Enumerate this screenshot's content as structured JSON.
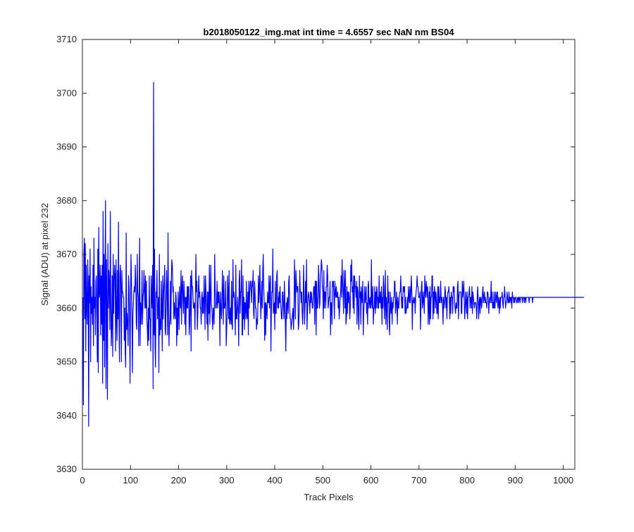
{
  "chart_data": {
    "type": "line",
    "title": "b2018050122_img.mat int time = 4.6557 sec  NaN nm BS04",
    "xlabel": "Track Pixels",
    "ylabel": "Signal (ADU) at pixel 232",
    "xlim": [
      0,
      1024
    ],
    "ylim": [
      3630,
      3710
    ],
    "xticks": [
      0,
      100,
      200,
      300,
      400,
      500,
      600,
      700,
      800,
      900,
      1000
    ],
    "yticks": [
      3630,
      3640,
      3650,
      3660,
      3670,
      3680,
      3690,
      3700,
      3710
    ],
    "grid": false,
    "legend": "none",
    "series": [
      {
        "color": "#0000ff",
        "x_start": 1,
        "x_step": 1,
        "values": [
          3662,
          3642,
          3670,
          3673,
          3658,
          3672,
          3652,
          3668,
          3660,
          3657,
          3669,
          3665,
          3638,
          3666,
          3661,
          3671,
          3650,
          3664,
          3659,
          3662,
          3657,
          3668,
          3653,
          3673,
          3660,
          3662,
          3655,
          3665,
          3666,
          3659,
          3650,
          3671,
          3648,
          3675,
          3662,
          3663,
          3668,
          3655,
          3666,
          3657,
          3668,
          3646,
          3678,
          3654,
          3670,
          3649,
          3666,
          3680,
          3645,
          3669,
          3658,
          3643,
          3672,
          3660,
          3667,
          3664,
          3656,
          3678,
          3661,
          3653,
          3657,
          3666,
          3651,
          3670,
          3659,
          3665,
          3668,
          3666,
          3652,
          3669,
          3658,
          3654,
          3667,
          3658,
          3676,
          3658,
          3650,
          3666,
          3668,
          3664,
          3650,
          3667,
          3663,
          3663,
          3662,
          3662,
          3654,
          3660,
          3652,
          3649,
          3674,
          3656,
          3659,
          3657,
          3653,
          3666,
          3664,
          3658,
          3646,
          3661,
          3670,
          3665,
          3658,
          3648,
          3659,
          3661,
          3663,
          3664,
          3663,
          3668,
          3665,
          3657,
          3656,
          3670,
          3663,
          3662,
          3653,
          3664,
          3673,
          3653,
          3661,
          3657,
          3660,
          3667,
          3657,
          3662,
          3663,
          3667,
          3663,
          3660,
          3666,
          3660,
          3665,
          3658,
          3656,
          3653,
          3660,
          3654,
          3666,
          3658,
          3658,
          3652,
          3666,
          3662,
          3660,
          3668,
          3645,
          3702,
          3655,
          3671,
          3653,
          3649,
          3663,
          3662,
          3667,
          3658,
          3660,
          3662,
          3648,
          3670,
          3655,
          3658,
          3656,
          3665,
          3660,
          3652,
          3666,
          3658,
          3663,
          3665,
          3668,
          3656,
          3655,
          3662,
          3667,
          3663,
          3655,
          3674,
          3661,
          3653,
          3657,
          3658,
          3665,
          3657,
          3666,
          3669,
          3668,
          3663,
          3664,
          3658,
          3661,
          3659,
          3658,
          3663,
          3662,
          3653,
          3660,
          3655,
          3663,
          3660,
          3656,
          3664,
          3661,
          3660,
          3667,
          3657,
          3664,
          3666,
          3662,
          3659,
          3665,
          3663,
          3657,
          3662,
          3655,
          3662,
          3660,
          3664,
          3660,
          3664,
          3664,
          3655,
          3657,
          3661,
          3666,
          3652,
          3667,
          3664,
          3664,
          3662,
          3660,
          3660,
          3661,
          3656,
          3662,
          3670,
          3663,
          3665,
          3656,
          3659,
          3663,
          3666,
          3662,
          3663,
          3660,
          3660,
          3657,
          3662,
          3663,
          3659,
          3662,
          3659,
          3666,
          3662,
          3656,
          3666,
          3663,
          3660,
          3657,
          3663,
          3654,
          3663,
          3659,
          3668,
          3657,
          3662,
          3668,
          3661,
          3660,
          3658,
          3656,
          3660,
          3660,
          3657,
          3670,
          3664,
          3660,
          3660,
          3661,
          3665,
          3660,
          3663,
          3661,
          3663,
          3660,
          3653,
          3663,
          3661,
          3658,
          3660,
          3667,
          3663,
          3657,
          3666,
          3660,
          3660,
          3661,
          3665,
          3653,
          3656,
          3659,
          3666,
          3663,
          3658,
          3667,
          3657,
          3658,
          3660,
          3657,
          3665,
          3657,
          3656,
          3669,
          3662,
          3663,
          3662,
          3660,
          3655,
          3668,
          3658,
          3658,
          3660,
          3662,
          3659,
          3653,
          3665,
          3667,
          3659,
          3663,
          3663,
          3669,
          3655,
          3655,
          3666,
          3658,
          3662,
          3656,
          3661,
          3661,
          3658,
          3665,
          3659,
          3658,
          3663,
          3655,
          3665,
          3660,
          3663,
          3665,
          3665,
          3663,
          3661,
          3665,
          3664,
          3667,
          3659,
          3658,
          3665,
          3663,
          3660,
          3660,
          3656,
          3658,
          3657,
          3661,
          3666,
          3661,
          3663,
          3668,
          3663,
          3658,
          3661,
          3665,
          3660,
          3667,
          3670,
          3664,
          3661,
          3654,
          3661,
          3655,
          3661,
          3660,
          3658,
          3663,
          3661,
          3661,
          3666,
          3660,
          3664,
          3666,
          3652,
          3660,
          3663,
          3663,
          3671,
          3659,
          3660,
          3661,
          3656,
          3665,
          3659,
          3659,
          3666,
          3667,
          3660,
          3662,
          3660,
          3663,
          3661,
          3664,
          3661,
          3660,
          3658,
          3658,
          3663,
          3663,
          3660,
          3658,
          3665,
          3661,
          3657,
          3652,
          3661,
          3658,
          3662,
          3661,
          3659,
          3665,
          3666,
          3660,
          3658,
          3658,
          3656,
          3657,
          3658,
          3659,
          3660,
          3656,
          3659,
          3669,
          3664,
          3658,
          3667,
          3665,
          3663,
          3664,
          3664,
          3656,
          3657,
          3660,
          3667,
          3663,
          3663,
          3661,
          3663,
          3659,
          3657,
          3661,
          3668,
          3663,
          3657,
          3660,
          3665,
          3661,
          3669,
          3656,
          3659,
          3662,
          3663,
          3662,
          3661,
          3659,
          3663,
          3661,
          3663,
          3662,
          3660,
          3660,
          3662,
          3664,
          3664,
          3657,
          3665,
          3665,
          3655,
          3665,
          3660,
          3660,
          3662,
          3668,
          3665,
          3660,
          3661,
          3666,
          3667,
          3669,
          3668,
          3664,
          3663,
          3658,
          3667,
          3660,
          3663,
          3663,
          3660,
          3664,
          3664,
          3668,
          3666,
          3660,
          3661,
          3662,
          3662,
          3665,
          3655,
          3661,
          3661,
          3657,
          3665,
          3664,
          3665,
          3662,
          3658,
          3665,
          3663,
          3662,
          3664,
          3662,
          3662,
          3663,
          3660,
          3662,
          3658,
          3660,
          3662,
          3663,
          3666,
          3662,
          3669,
          3665,
          3663,
          3659,
          3667,
          3664,
          3660,
          3667,
          3657,
          3658,
          3664,
          3659,
          3663,
          3661,
          3663,
          3662,
          3658,
          3660,
          3668,
          3665,
          3669,
          3663,
          3664,
          3660,
          3666,
          3659,
          3666,
          3664,
          3664,
          3662,
          3665,
          3657,
          3664,
          3663,
          3658,
          3656,
          3666,
          3662,
          3663,
          3657,
          3664,
          3662,
          3661,
          3665,
          3655,
          3659,
          3661,
          3664,
          3661,
          3662,
          3664,
          3659,
          3661,
          3657,
          3664,
          3665,
          3660,
          3661,
          3662,
          3660,
          3660,
          3669,
          3661,
          3660,
          3664,
          3657,
          3660,
          3660,
          3664,
          3659,
          3663,
          3660,
          3664,
          3663,
          3660,
          3662,
          3660,
          3666,
          3661,
          3661,
          3663,
          3660,
          3664,
          3657,
          3662,
          3660,
          3666,
          3664,
          3658,
          3661,
          3667,
          3657,
          3662,
          3660,
          3656,
          3666,
          3661,
          3663,
          3657,
          3655,
          3663,
          3660,
          3659,
          3662,
          3657,
          3661,
          3660,
          3662,
          3662,
          3665,
          3665,
          3659,
          3660,
          3663,
          3661,
          3657,
          3662,
          3660,
          3660,
          3662,
          3663,
          3663,
          3666,
          3663,
          3660,
          3662,
          3660,
          3664,
          3663,
          3664,
          3664,
          3659,
          3662,
          3659,
          3660,
          3660,
          3662,
          3660,
          3664,
          3662,
          3661,
          3664,
          3661,
          3663,
          3666,
          3663,
          3656,
          3661,
          3662,
          3661,
          3661,
          3662,
          3659,
          3662,
          3663,
          3664,
          3666,
          3664,
          3664,
          3662,
          3662,
          3662,
          3663,
          3656,
          3660,
          3664,
          3665,
          3660,
          3661,
          3663,
          3661,
          3659,
          3666,
          3663,
          3662,
          3665,
          3664,
          3662,
          3664,
          3657,
          3660,
          3663,
          3657,
          3664,
          3658,
          3662,
          3662,
          3666,
          3666,
          3658,
          3663,
          3659,
          3664,
          3663,
          3660,
          3663,
          3662,
          3659,
          3659,
          3664,
          3658,
          3664,
          3661,
          3662,
          3661,
          3665,
          3662,
          3661,
          3662,
          3660,
          3657,
          3662,
          3660,
          3661,
          3664,
          3663,
          3660,
          3662,
          3658,
          3662,
          3663,
          3663,
          3664,
          3662,
          3658,
          3662,
          3659,
          3663,
          3662,
          3662,
          3659,
          3664,
          3663,
          3664,
          3661,
          3660,
          3659,
          3661,
          3660,
          3660,
          3664,
          3665,
          3658,
          3662,
          3663,
          3663,
          3663,
          3663,
          3659,
          3659,
          3665,
          3662,
          3663,
          3665,
          3662,
          3658,
          3660,
          3663,
          3661,
          3659,
          3663,
          3658,
          3662,
          3662,
          3663,
          3664,
          3660,
          3662,
          3662,
          3660,
          3664,
          3659,
          3663,
          3662,
          3661,
          3660,
          3661,
          3661,
          3661,
          3660,
          3658,
          3662,
          3664,
          3662,
          3658,
          3661,
          3662,
          3659,
          3662,
          3662,
          3660,
          3661,
          3663,
          3664,
          3661,
          3662,
          3663,
          3661,
          3662,
          3661,
          3661,
          3660,
          3663,
          3663,
          3662,
          3659,
          3661,
          3662,
          3661,
          3662,
          3665,
          3661,
          3663,
          3660,
          3661,
          3660,
          3663,
          3660,
          3660,
          3663,
          3662,
          3661,
          3663,
          3663,
          3660,
          3662,
          3661,
          3659,
          3662,
          3660,
          3662,
          3662,
          3662,
          3663,
          3661,
          3660,
          3662,
          3662,
          3664,
          3662,
          3660,
          3661,
          3661,
          3663,
          3662,
          3661,
          3661,
          3663,
          3661,
          3662,
          3662,
          3661,
          3662,
          3660,
          3663,
          3662,
          3662,
          3661,
          3662,
          3661,
          3662,
          3662,
          3662,
          3661,
          3661,
          3662,
          3662,
          3661,
          3662,
          3662,
          3661,
          3662,
          3662,
          3662,
          3662,
          3661,
          3662,
          3662,
          3662,
          3661,
          3662,
          3662,
          3661,
          3662,
          3662,
          3662,
          3662,
          3662,
          3662,
          3661,
          3662,
          3662,
          3662,
          3662,
          3662,
          3662,
          3661,
          3662,
          3662,
          3662,
          3662,
          3662,
          3662,
          3662,
          3662,
          3662,
          3662,
          3662,
          3662,
          3662,
          3662,
          3662,
          3662,
          3662,
          3662,
          3662,
          3662,
          3662,
          3662,
          3662,
          3662,
          3662,
          3662,
          3662,
          3662,
          3662,
          3662,
          3662,
          3662,
          3662,
          3662,
          3662,
          3662,
          3662,
          3662,
          3662,
          3662,
          3662,
          3662,
          3662,
          3662,
          3662,
          3662,
          3662,
          3662,
          3662,
          3662,
          3662,
          3662,
          3662,
          3662,
          3662,
          3662,
          3662,
          3662,
          3662,
          3662,
          3662,
          3662,
          3662,
          3662,
          3662,
          3662,
          3662,
          3662,
          3662,
          3662,
          3662,
          3662,
          3662,
          3662,
          3662,
          3662,
          3662,
          3662,
          3662,
          3662,
          3662,
          3662,
          3662,
          3662,
          3662,
          3662,
          3662,
          3662,
          3662,
          3662,
          3662,
          3662,
          3662,
          3662,
          3662,
          3662,
          3662,
          3662,
          3662,
          3662,
          3662,
          3662,
          3662,
          3662,
          3662,
          3662,
          3662
        ]
      }
    ]
  }
}
